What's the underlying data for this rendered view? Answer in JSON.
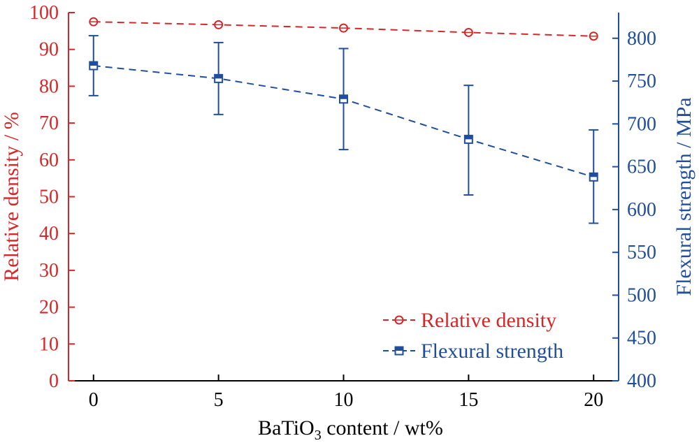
{
  "chart_data": {
    "type": "line",
    "x": [
      0,
      5,
      10,
      15,
      20
    ],
    "xlabel": {
      "main": "BaTiO",
      "sub": "3",
      "rest": " content / wt%"
    },
    "xlim": [
      -1,
      21
    ],
    "xticks": [
      0,
      5,
      10,
      15,
      20
    ],
    "ylabel_left": "Relative density / %",
    "ylim_left": [
      0,
      100
    ],
    "yticks_left": [
      0,
      10,
      20,
      30,
      40,
      50,
      60,
      70,
      80,
      90,
      100
    ],
    "ylabel_right": "Flexural strength / MPa",
    "ylim_right": [
      400,
      830
    ],
    "yticks_right": [
      400,
      450,
      500,
      550,
      600,
      650,
      700,
      750,
      800
    ],
    "series": [
      {
        "name": "Relative density",
        "axis": "left",
        "values": [
          97.5,
          96.7,
          95.8,
          94.6,
          93.6
        ],
        "color": "#d62728",
        "marker": "circle",
        "line": "dashed"
      },
      {
        "name": "Flexural strength",
        "axis": "right",
        "values": [
          768,
          753,
          729,
          682,
          638
        ],
        "error": [
          [
            733,
            803
          ],
          [
            711,
            795
          ],
          [
            670,
            788
          ],
          [
            617,
            745
          ],
          [
            584,
            693
          ]
        ],
        "color": "#1f4e9c",
        "marker": "square",
        "line": "dashed"
      }
    ],
    "legend": "bottom-right",
    "grid": false,
    "colors": {
      "left_axis": "#d62728",
      "right_axis": "#1f4e9c",
      "bottom_axis": "#000000"
    }
  }
}
